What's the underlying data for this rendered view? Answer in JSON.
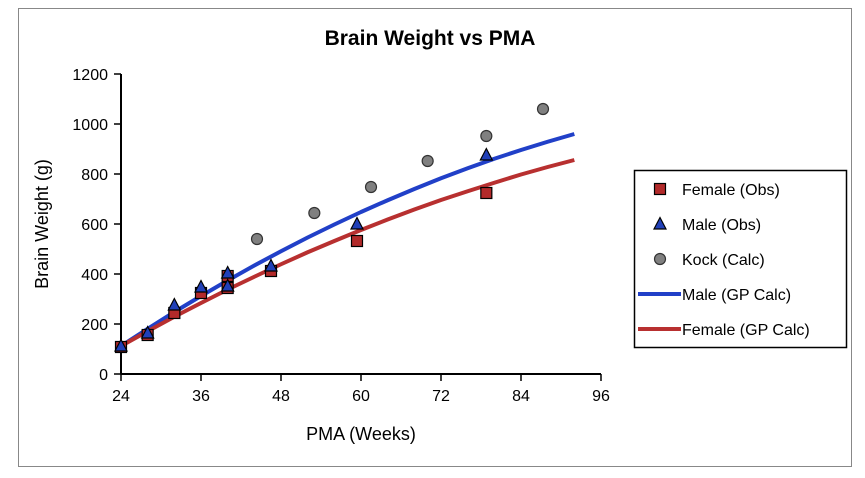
{
  "chart_data": {
    "type": "scatter",
    "title": "Brain Weight vs PMA",
    "xlabel": "PMA (Weeks)",
    "ylabel": "Brain Weight (g)",
    "xlim": [
      24,
      96
    ],
    "ylim": [
      0,
      1200
    ],
    "xticks": [
      24,
      36,
      48,
      60,
      72,
      84,
      96
    ],
    "yticks": [
      0,
      200,
      400,
      600,
      800,
      1000,
      1200
    ],
    "grid": false,
    "legend_position": "right",
    "series": [
      {
        "name": "Female (Obs)",
        "kind": "marker",
        "marker": "square",
        "color": "#b22a2a",
        "points": [
          [
            24,
            108
          ],
          [
            28,
            156
          ],
          [
            32,
            244
          ],
          [
            36,
            324
          ],
          [
            40,
            392
          ],
          [
            40,
            344
          ],
          [
            46.5,
            412
          ],
          [
            59.4,
            532
          ],
          [
            78.8,
            724
          ]
        ]
      },
      {
        "name": "Male (Obs)",
        "kind": "marker",
        "marker": "triangle",
        "color": "#2140b8",
        "points": [
          [
            24,
            112
          ],
          [
            28,
            164
          ],
          [
            32,
            276
          ],
          [
            36,
            348
          ],
          [
            40,
            404
          ],
          [
            40,
            352
          ],
          [
            46.5,
            432
          ],
          [
            59.4,
            600
          ],
          [
            78.8,
            876
          ]
        ]
      },
      {
        "name": "Kock (Calc)",
        "kind": "marker",
        "marker": "circle",
        "color": "#808080",
        "points": [
          [
            44.4,
            540
          ],
          [
            53,
            644
          ],
          [
            61.5,
            748
          ],
          [
            70,
            852
          ],
          [
            78.8,
            952
          ],
          [
            87.3,
            1060
          ]
        ]
      },
      {
        "name": "Male (GP Calc)",
        "kind": "line",
        "color": "#2140c8",
        "points": [
          [
            24,
            112
          ],
          [
            28,
            181
          ],
          [
            32,
            248
          ],
          [
            36,
            312
          ],
          [
            40,
            374
          ],
          [
            44,
            434
          ],
          [
            48,
            491
          ],
          [
            52,
            546
          ],
          [
            56,
            598
          ],
          [
            60,
            648
          ],
          [
            64,
            695
          ],
          [
            68,
            740
          ],
          [
            72,
            783
          ],
          [
            76,
            823
          ],
          [
            80,
            861
          ],
          [
            84,
            896
          ],
          [
            88,
            929
          ],
          [
            92,
            960
          ]
        ]
      },
      {
        "name": "Female (GP Calc)",
        "kind": "line",
        "color": "#b83030",
        "points": [
          [
            24,
            112
          ],
          [
            28,
            171
          ],
          [
            32,
            229
          ],
          [
            36,
            284
          ],
          [
            40,
            338
          ],
          [
            44,
            389
          ],
          [
            48,
            439
          ],
          [
            52,
            487
          ],
          [
            56,
            532
          ],
          [
            60,
            576
          ],
          [
            64,
            618
          ],
          [
            68,
            658
          ],
          [
            72,
            696
          ],
          [
            76,
            731
          ],
          [
            80,
            765
          ],
          [
            84,
            798
          ],
          [
            88,
            828
          ],
          [
            92,
            856
          ]
        ]
      }
    ]
  }
}
